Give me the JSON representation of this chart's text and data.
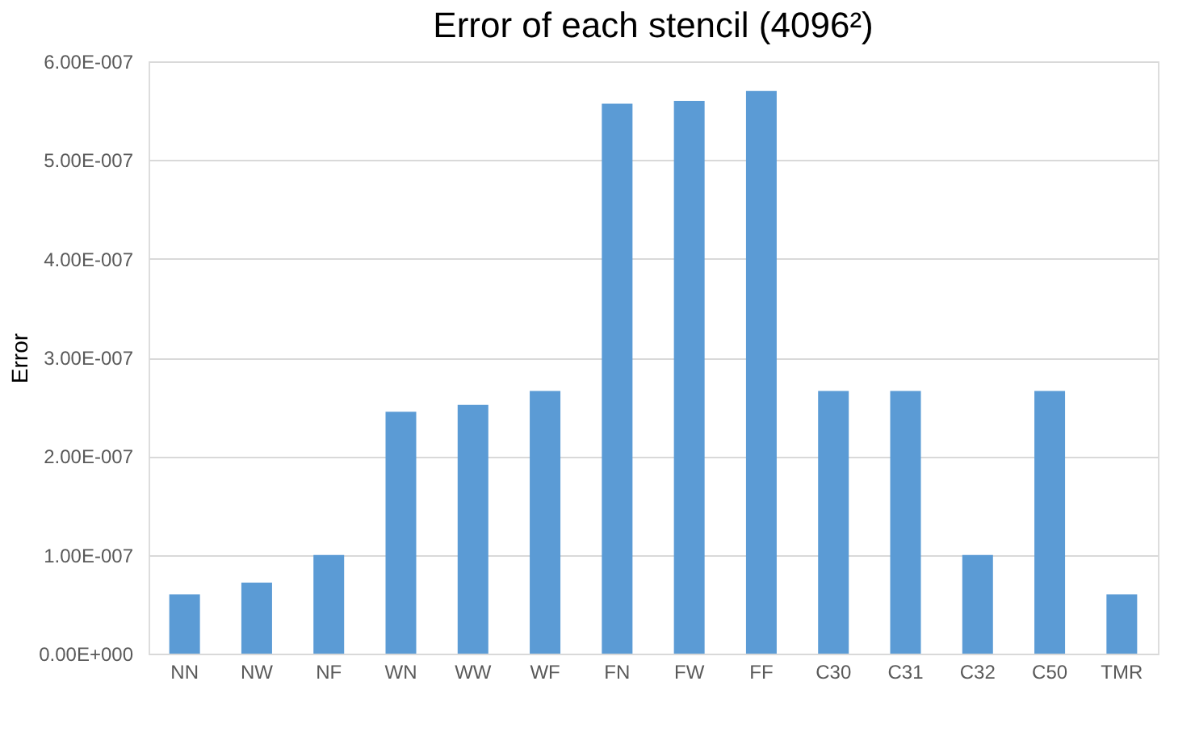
{
  "chart_data": {
    "type": "bar",
    "title": "Error of each stencil (4096²)",
    "ylabel": "Error",
    "categories": [
      "NN",
      "NW",
      "NF",
      "WN",
      "WW",
      "WF",
      "FN",
      "FW",
      "FF",
      "C30",
      "C31",
      "C32",
      "C50",
      "TMR"
    ],
    "values": [
      6e-08,
      7.2e-08,
      1e-07,
      2.45e-07,
      2.52e-07,
      2.66e-07,
      5.57e-07,
      5.6e-07,
      5.7e-07,
      2.66e-07,
      2.66e-07,
      1e-07,
      2.66e-07,
      6e-08
    ],
    "color": "#5b9bd5",
    "ylim": [
      0,
      6e-07
    ],
    "yticks": [
      {
        "value": 0,
        "label": "0.00E+000"
      },
      {
        "value": 1e-07,
        "label": "1.00E-007"
      },
      {
        "value": 2e-07,
        "label": "2.00E-007"
      },
      {
        "value": 3e-07,
        "label": "3.00E-007"
      },
      {
        "value": 4e-07,
        "label": "4.00E-007"
      },
      {
        "value": 5e-07,
        "label": "5.00E-007"
      },
      {
        "value": 6e-07,
        "label": "6.00E-007"
      }
    ],
    "grid": "y"
  }
}
